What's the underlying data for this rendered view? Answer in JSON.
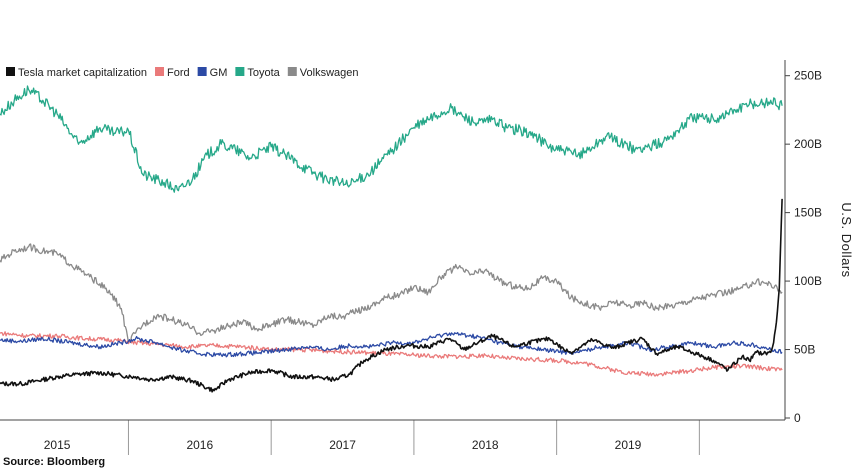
{
  "chart_data": {
    "type": "line",
    "title": "",
    "ylabel": "U.S. Dollars",
    "ylim": [
      0,
      260
    ],
    "yticks": [
      {
        "value": 0,
        "label": "0"
      },
      {
        "value": 50,
        "label": "50B"
      },
      {
        "value": 100,
        "label": "100B"
      },
      {
        "value": 150,
        "label": "150B"
      },
      {
        "value": 200,
        "label": "200B"
      },
      {
        "value": 250,
        "label": "250B"
      }
    ],
    "xlim": [
      2014.6,
      2020.1
    ],
    "xticks": [
      {
        "value": 2015,
        "label": "2015"
      },
      {
        "value": 2016,
        "label": "2016"
      },
      {
        "value": 2017,
        "label": "2017"
      },
      {
        "value": 2018,
        "label": "2018"
      },
      {
        "value": 2019,
        "label": "2019"
      }
    ],
    "year_boundaries": [
      2015.5,
      2016.5,
      2017.5,
      2018.5,
      2019.5
    ],
    "legend_position": "top-left",
    "grid": false,
    "source": "Source: Bloomberg",
    "series": [
      {
        "name": "Tesla market capitalization",
        "color": "#111111",
        "x": [
          2014.6,
          2014.75,
          2014.9,
          2015.0,
          2015.15,
          2015.3,
          2015.45,
          2015.55,
          2015.65,
          2015.8,
          2015.95,
          2016.05,
          2016.1,
          2016.2,
          2016.35,
          2016.5,
          2016.65,
          2016.8,
          2016.95,
          2017.05,
          2017.15,
          2017.3,
          2017.45,
          2017.6,
          2017.75,
          2017.85,
          2017.95,
          2018.05,
          2018.2,
          2018.3,
          2018.45,
          2018.55,
          2018.6,
          2018.75,
          2018.9,
          2019.0,
          2019.1,
          2019.2,
          2019.35,
          2019.45,
          2019.6,
          2019.7,
          2019.8,
          2019.85,
          2019.9,
          2019.95,
          2020.0,
          2020.02,
          2020.04,
          2020.06,
          2020.08
        ],
        "values": [
          25,
          25,
          28,
          30,
          32,
          33,
          31,
          30,
          28,
          30,
          27,
          22,
          20,
          28,
          33,
          35,
          30,
          30,
          28,
          32,
          42,
          50,
          53,
          52,
          58,
          50,
          55,
          60,
          52,
          55,
          58,
          50,
          48,
          57,
          51,
          55,
          58,
          47,
          52,
          48,
          42,
          35,
          45,
          42,
          48,
          47,
          48,
          55,
          70,
          95,
          160
        ]
      },
      {
        "name": "Ford",
        "color": "#ea7a7a",
        "x": [
          2014.6,
          2014.8,
          2015.0,
          2015.2,
          2015.4,
          2015.55,
          2015.7,
          2015.9,
          2016.1,
          2016.3,
          2016.5,
          2016.7,
          2016.9,
          2017.1,
          2017.3,
          2017.5,
          2017.7,
          2017.9,
          2018.0,
          2018.1,
          2018.3,
          2018.5,
          2018.7,
          2018.9,
          2019.0,
          2019.2,
          2019.4,
          2019.6,
          2019.8,
          2020.0,
          2020.08
        ],
        "values": [
          62,
          60,
          60,
          58,
          57,
          55,
          54,
          52,
          53,
          52,
          50,
          50,
          49,
          48,
          47,
          46,
          45,
          45,
          46,
          44,
          43,
          42,
          40,
          35,
          33,
          32,
          34,
          37,
          38,
          36,
          35
        ]
      },
      {
        "name": "GM",
        "color": "#2c4aa5",
        "x": [
          2014.6,
          2014.75,
          2014.9,
          2015.1,
          2015.3,
          2015.45,
          2015.55,
          2015.7,
          2015.85,
          2016.0,
          2016.15,
          2016.3,
          2016.45,
          2016.6,
          2016.75,
          2016.9,
          2017.05,
          2017.2,
          2017.35,
          2017.5,
          2017.6,
          2017.75,
          2017.9,
          2018.0,
          2018.1,
          2018.25,
          2018.4,
          2018.55,
          2018.65,
          2018.8,
          2018.9,
          2019.0,
          2019.15,
          2019.3,
          2019.45,
          2019.6,
          2019.75,
          2019.9,
          2020.0,
          2020.08
        ],
        "values": [
          57,
          56,
          58,
          55,
          52,
          55,
          58,
          55,
          50,
          47,
          46,
          47,
          48,
          50,
          52,
          50,
          53,
          52,
          55,
          55,
          58,
          62,
          60,
          58,
          55,
          52,
          50,
          48,
          48,
          52,
          53,
          55,
          50,
          52,
          55,
          52,
          55,
          53,
          50,
          48
        ]
      },
      {
        "name": "Toyota",
        "color": "#26a889",
        "x": [
          2014.6,
          2014.7,
          2014.8,
          2014.9,
          2015.0,
          2015.15,
          2015.3,
          2015.4,
          2015.5,
          2015.6,
          2015.75,
          2015.85,
          2015.95,
          2016.05,
          2016.15,
          2016.25,
          2016.35,
          2016.5,
          2016.6,
          2016.75,
          2016.85,
          2016.95,
          2017.05,
          2017.2,
          2017.35,
          2017.5,
          2017.6,
          2017.75,
          2017.85,
          2017.95,
          2018.05,
          2018.15,
          2018.25,
          2018.35,
          2018.45,
          2018.55,
          2018.65,
          2018.75,
          2018.85,
          2018.95,
          2019.05,
          2019.15,
          2019.25,
          2019.35,
          2019.45,
          2019.6,
          2019.75,
          2019.85,
          2019.95,
          2020.0,
          2020.08
        ],
        "values": [
          222,
          232,
          240,
          232,
          222,
          200,
          212,
          208,
          210,
          178,
          172,
          166,
          175,
          192,
          200,
          196,
          190,
          198,
          192,
          182,
          176,
          173,
          170,
          180,
          196,
          212,
          218,
          226,
          220,
          215,
          218,
          212,
          210,
          206,
          198,
          195,
          192,
          198,
          206,
          201,
          196,
          198,
          202,
          210,
          220,
          218,
          225,
          229,
          230,
          232,
          228
        ]
      },
      {
        "name": "Volkswagen",
        "color": "#8a8a8a",
        "x": [
          2014.6,
          2014.7,
          2014.8,
          2014.9,
          2015.0,
          2015.1,
          2015.2,
          2015.3,
          2015.38,
          2015.45,
          2015.5,
          2015.55,
          2015.6,
          2015.7,
          2015.8,
          2015.9,
          2016.0,
          2016.1,
          2016.2,
          2016.3,
          2016.4,
          2016.5,
          2016.6,
          2016.7,
          2016.8,
          2016.9,
          2017.0,
          2017.1,
          2017.2,
          2017.3,
          2017.4,
          2017.5,
          2017.6,
          2017.7,
          2017.8,
          2017.9,
          2018.0,
          2018.1,
          2018.2,
          2018.3,
          2018.4,
          2018.5,
          2018.6,
          2018.7,
          2018.8,
          2018.9,
          2019.0,
          2019.1,
          2019.2,
          2019.3,
          2019.4,
          2019.5,
          2019.6,
          2019.7,
          2019.8,
          2019.9,
          2020.0,
          2020.08
        ],
        "values": [
          115,
          122,
          125,
          122,
          120,
          112,
          105,
          98,
          90,
          80,
          55,
          62,
          68,
          75,
          72,
          68,
          62,
          64,
          67,
          70,
          65,
          68,
          72,
          70,
          68,
          75,
          74,
          78,
          82,
          88,
          90,
          96,
          92,
          104,
          110,
          105,
          108,
          100,
          96,
          95,
          102,
          100,
          88,
          84,
          80,
          85,
          82,
          84,
          80,
          82,
          85,
          88,
          90,
          92,
          95,
          100,
          98,
          92
        ]
      }
    ]
  }
}
